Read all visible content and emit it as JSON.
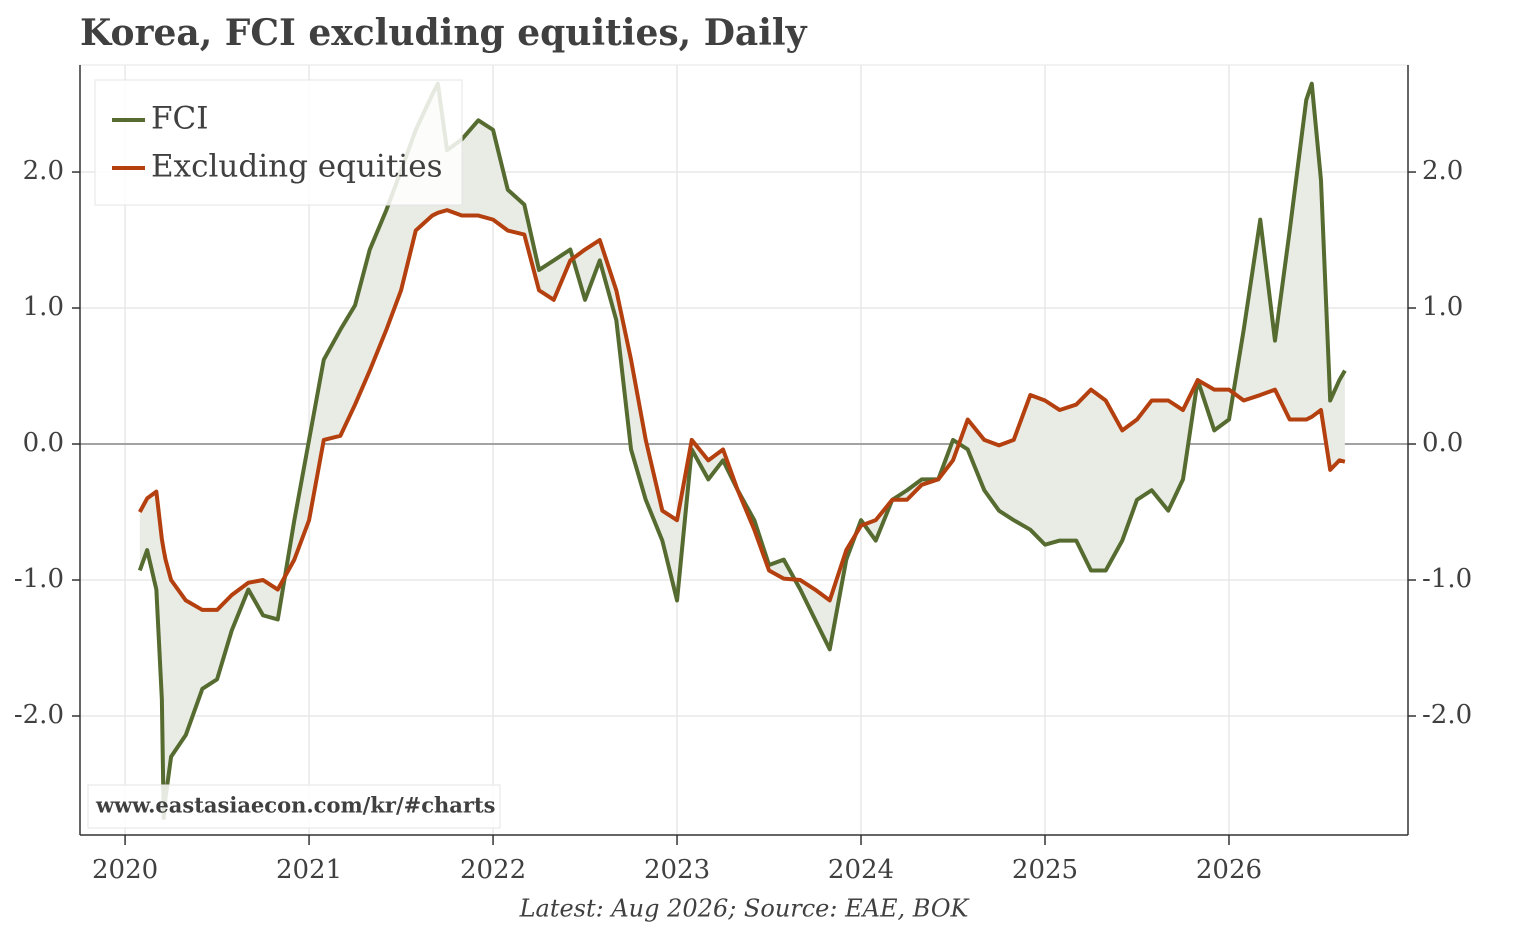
{
  "chart_data": {
    "type": "line",
    "title": "Korea, FCI excluding equities, Daily",
    "source": "Latest: Aug 2026; Source: EAE, BOK",
    "watermark": "www.eastasiaecon.com/kr/#charts",
    "x": [
      2020.08,
      2020.12,
      2020.17,
      2020.2,
      2020.21,
      2020.22,
      2020.25,
      2020.33,
      2020.42,
      2020.5,
      2020.58,
      2020.67,
      2020.75,
      2020.83,
      2020.92,
      2021.0,
      2021.08,
      2021.17,
      2021.25,
      2021.33,
      2021.42,
      2021.5,
      2021.58,
      2021.67,
      2021.7,
      2021.75,
      2021.83,
      2021.92,
      2022.0,
      2022.08,
      2022.17,
      2022.25,
      2022.33,
      2022.42,
      2022.5,
      2022.58,
      2022.67,
      2022.75,
      2022.83,
      2022.92,
      2023.0,
      2023.08,
      2023.17,
      2023.25,
      2023.33,
      2023.42,
      2023.5,
      2023.58,
      2023.67,
      2023.75,
      2023.83,
      2023.92,
      2024.0,
      2024.08,
      2024.17,
      2024.25,
      2024.33,
      2024.42,
      2024.5,
      2024.58,
      2024.67,
      2024.75,
      2024.83,
      2024.92,
      2025.0,
      2025.08,
      2025.17,
      2025.25,
      2025.33,
      2025.42,
      2025.5,
      2025.58,
      2025.67,
      2025.75,
      2025.83,
      2025.92,
      2026.0,
      2026.08,
      2026.17,
      2026.25,
      2026.33,
      2026.42,
      2026.45,
      2026.5,
      2026.55,
      2026.6,
      2026.63
    ],
    "series": [
      {
        "name": "FCI",
        "color": "#566b30",
        "values": [
          -0.93,
          -0.78,
          -1.07,
          -1.88,
          -2.75,
          -2.6,
          -2.3,
          -2.14,
          -1.8,
          -1.73,
          -1.37,
          -1.07,
          -1.26,
          -1.29,
          -0.56,
          0.03,
          0.62,
          0.84,
          1.02,
          1.43,
          1.72,
          2.01,
          2.31,
          2.57,
          2.65,
          2.16,
          2.24,
          2.38,
          2.31,
          1.87,
          1.76,
          1.28,
          1.35,
          1.43,
          1.06,
          1.35,
          0.91,
          -0.04,
          -0.41,
          -0.71,
          -1.15,
          -0.04,
          -0.26,
          -0.12,
          -0.34,
          -0.56,
          -0.89,
          -0.85,
          -1.07,
          -1.29,
          -1.51,
          -0.85,
          -0.56,
          -0.71,
          -0.41,
          -0.34,
          -0.26,
          -0.26,
          0.03,
          -0.04,
          -0.34,
          -0.49,
          -0.56,
          -0.63,
          -0.74,
          -0.71,
          -0.71,
          -0.93,
          -0.93,
          -0.71,
          -0.41,
          -0.34,
          -0.49,
          -0.26,
          0.47,
          0.1,
          0.18,
          0.84,
          1.65,
          0.76,
          1.57,
          2.53,
          2.65,
          1.94,
          0.32,
          0.47,
          0.54
        ]
      },
      {
        "name": "Excluding equities",
        "color": "#b5400f",
        "values": [
          -0.5,
          -0.4,
          -0.35,
          -0.7,
          -0.78,
          -0.85,
          -1.0,
          -1.15,
          -1.22,
          -1.22,
          -1.11,
          -1.02,
          -1.0,
          -1.07,
          -0.85,
          -0.56,
          0.03,
          0.06,
          0.29,
          0.54,
          0.84,
          1.13,
          1.57,
          1.68,
          1.7,
          1.72,
          1.68,
          1.68,
          1.65,
          1.57,
          1.54,
          1.13,
          1.06,
          1.35,
          1.43,
          1.5,
          1.13,
          0.62,
          0.03,
          -0.49,
          -0.56,
          0.03,
          -0.12,
          -0.04,
          -0.34,
          -0.63,
          -0.93,
          -0.99,
          -1.0,
          -1.07,
          -1.15,
          -0.78,
          -0.6,
          -0.56,
          -0.41,
          -0.41,
          -0.3,
          -0.26,
          -0.12,
          0.18,
          0.03,
          -0.01,
          0.03,
          0.36,
          0.32,
          0.25,
          0.29,
          0.4,
          0.32,
          0.1,
          0.18,
          0.32,
          0.32,
          0.25,
          0.47,
          0.4,
          0.4,
          0.32,
          0.36,
          0.4,
          0.18,
          0.18,
          0.2,
          0.25,
          -0.19,
          -0.12,
          -0.13
        ]
      }
    ],
    "fill_color": "#e9ece5",
    "xlim": [
      2019.755,
      2026.973
    ],
    "xticks": [
      2020,
      2021,
      2022,
      2023,
      2024,
      2025,
      2026
    ],
    "ylim": [
      -2.875,
      2.787
    ],
    "yticks": [
      {
        "value": -2,
        "label": "-2.0"
      },
      {
        "value": -1,
        "label": "-1.0"
      },
      {
        "value": 0,
        "label": "0.0"
      },
      {
        "value": 1,
        "label": "1.0"
      },
      {
        "value": 2,
        "label": "2.0"
      }
    ],
    "grid": true,
    "legend": "upper left"
  }
}
